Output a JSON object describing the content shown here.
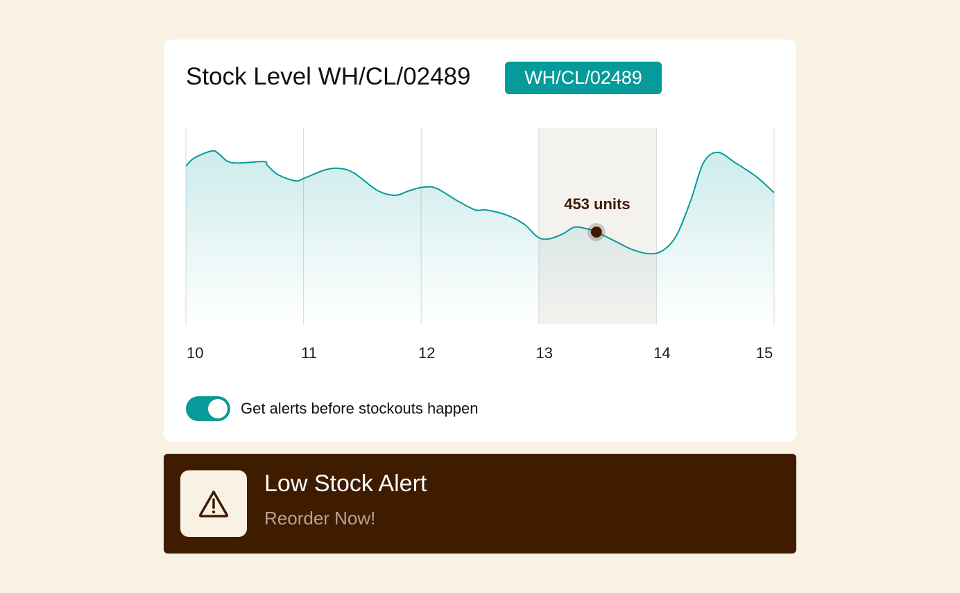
{
  "card": {
    "title": "Stock Level WH/CL/02489",
    "badge": "WH/CL/02489",
    "toggle": {
      "on": true,
      "label": "Get alerts before stockouts happen"
    }
  },
  "alert": {
    "icon": "warning-triangle-icon",
    "title": "Low Stock Alert",
    "subtitle": "Reorder Now!"
  },
  "colors": {
    "accent": "#079a9a",
    "alert_bg": "#3f1c00",
    "page_bg": "#f9f1e4",
    "marker": "#3f1c00"
  },
  "chart_data": {
    "type": "area",
    "grid": "vertical",
    "xlim": [
      10,
      15
    ],
    "ylim": [
      0,
      964
    ],
    "x_ticks": [
      "10",
      "11",
      "12",
      "13",
      "14",
      "15"
    ],
    "highlight_range": [
      13,
      14
    ],
    "annotation": {
      "x": 13.49,
      "y": 453,
      "label": "453 units"
    },
    "points": [
      [
        10.0,
        777
      ],
      [
        10.07,
        817
      ],
      [
        10.22,
        852
      ],
      [
        10.28,
        838
      ],
      [
        10.39,
        794
      ],
      [
        10.66,
        800
      ],
      [
        10.69,
        783
      ],
      [
        10.78,
        736
      ],
      [
        10.93,
        705
      ],
      [
        11.01,
        719
      ],
      [
        11.19,
        760
      ],
      [
        11.31,
        766
      ],
      [
        11.43,
        743
      ],
      [
        11.63,
        657
      ],
      [
        11.78,
        634
      ],
      [
        11.9,
        657
      ],
      [
        12.02,
        674
      ],
      [
        12.13,
        668
      ],
      [
        12.31,
        606
      ],
      [
        12.46,
        562
      ],
      [
        12.55,
        562
      ],
      [
        12.72,
        538
      ],
      [
        12.87,
        494
      ],
      [
        12.99,
        429
      ],
      [
        13.08,
        419
      ],
      [
        13.2,
        443
      ],
      [
        13.3,
        477
      ],
      [
        13.4,
        470
      ],
      [
        13.49,
        453
      ],
      [
        13.67,
        402
      ],
      [
        13.79,
        368
      ],
      [
        13.93,
        347
      ],
      [
        14.05,
        361
      ],
      [
        14.17,
        436
      ],
      [
        14.29,
        606
      ],
      [
        14.4,
        794
      ],
      [
        14.52,
        845
      ],
      [
        14.67,
        794
      ],
      [
        14.85,
        725
      ],
      [
        15.0,
        647
      ]
    ]
  }
}
